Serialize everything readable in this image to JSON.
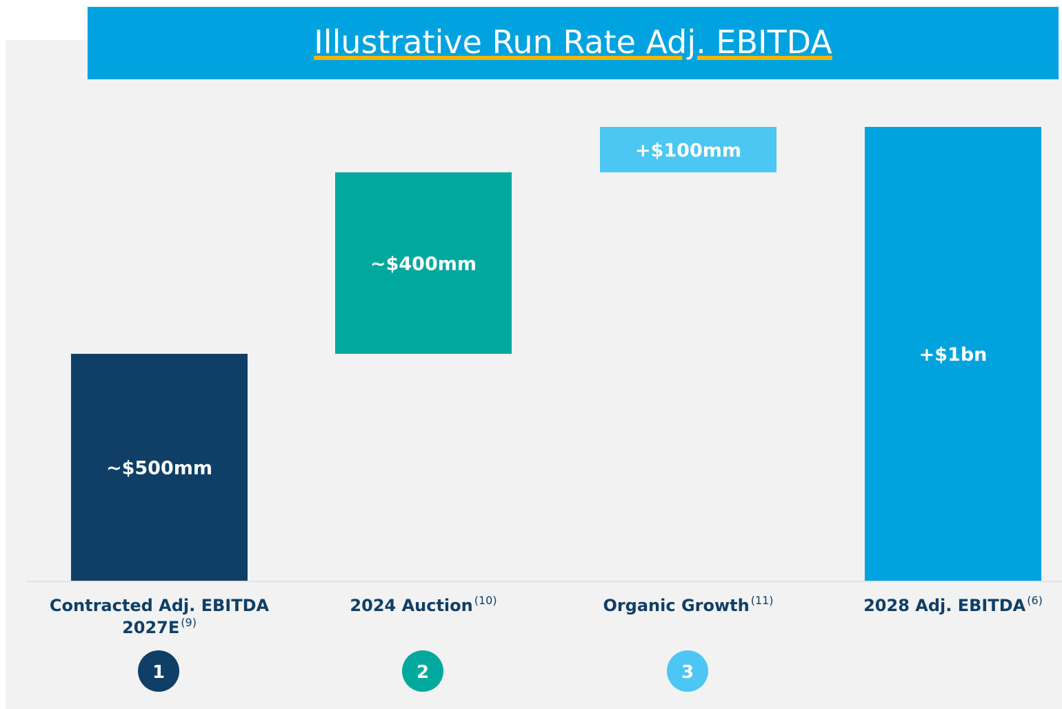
{
  "chart_data": {
    "type": "waterfall",
    "title": "Illustrative Run Rate Adj. EBITDA",
    "categories": [
      "Contracted Adj. EBITDA 2027E",
      "2024 Auction",
      "Organic Growth",
      "2028 Adj. EBITDA"
    ],
    "category_notes": [
      "(9)",
      "(10)",
      "(11)",
      "(6)"
    ],
    "values": [
      500,
      400,
      100,
      1000
    ],
    "value_labels": [
      "~$500mm",
      "~$400mm",
      "+$100mm",
      "+$1bn"
    ],
    "measures": [
      "absolute",
      "relative",
      "relative",
      "total"
    ],
    "colors": [
      "#0f3f66",
      "#00a89d",
      "#4cc6f2",
      "#00a3de"
    ],
    "step_numbers": [
      "1",
      "2",
      "3",
      null
    ]
  }
}
